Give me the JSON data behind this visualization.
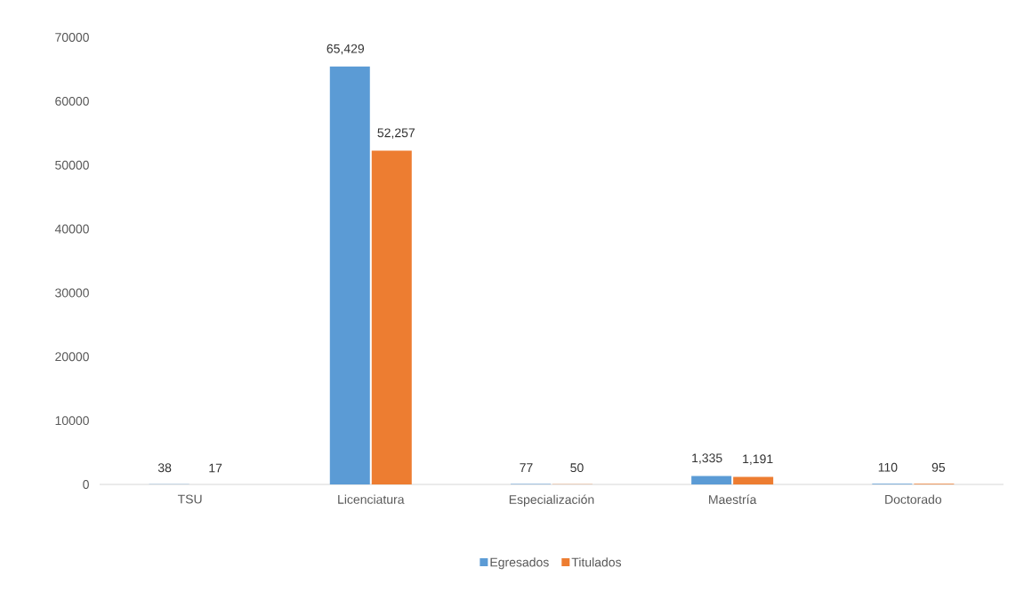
{
  "chart_data": {
    "type": "bar",
    "categories": [
      "TSU",
      "Licenciatura",
      "Especialización",
      "Maestría",
      "Doctorado"
    ],
    "series": [
      {
        "name": "Egresados",
        "color": "#5b9bd5",
        "values": [
          38,
          65429,
          77,
          1335,
          110
        ],
        "value_labels": [
          "38",
          "65,429",
          "77",
          "1,335",
          "110"
        ]
      },
      {
        "name": "Titulados",
        "color": "#ed7d31",
        "values": [
          17,
          52257,
          50,
          1191,
          95
        ],
        "value_labels": [
          "17",
          "52,257",
          "50",
          "1,191",
          "95"
        ]
      }
    ],
    "ylim": [
      0,
      70000
    ],
    "yticks": [
      0,
      10000,
      20000,
      30000,
      40000,
      50000,
      60000,
      70000
    ],
    "grid": false,
    "legend": "bottom"
  }
}
